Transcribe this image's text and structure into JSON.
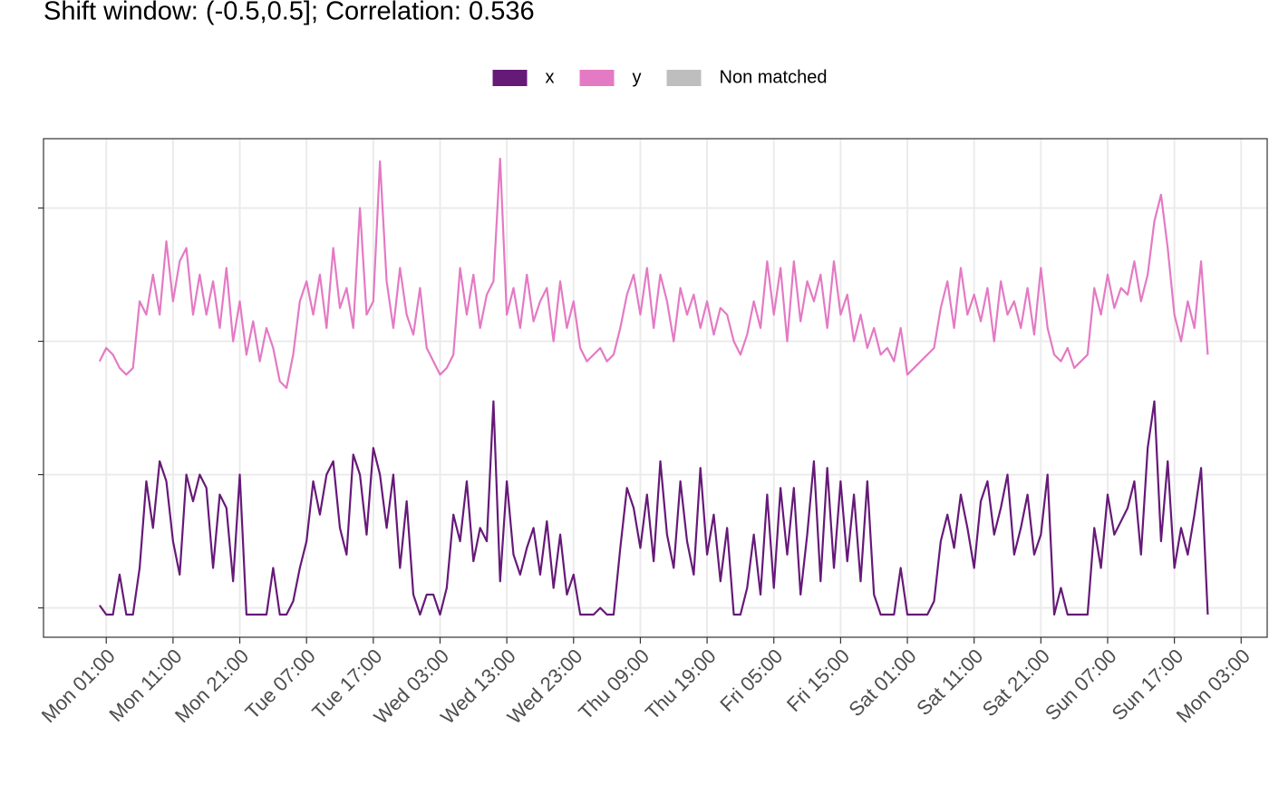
{
  "chart_data": {
    "type": "line",
    "title": "Shift window: (-0.5,0.5]; Correlation: 0.536",
    "legend": {
      "position": "top",
      "extra": [
        {
          "name": "Non matched",
          "color": "#bebebe"
        }
      ]
    },
    "grid": true,
    "xlim": [
      -8.4,
      174.9
    ],
    "ylim": [
      -0.22,
      3.52
    ],
    "yticks": [
      0,
      1,
      2,
      3
    ],
    "xticks": [
      {
        "value": 1,
        "label": "Mon 01:00"
      },
      {
        "value": 11,
        "label": "Mon 11:00"
      },
      {
        "value": 21,
        "label": "Mon 21:00"
      },
      {
        "value": 31,
        "label": "Tue 07:00"
      },
      {
        "value": 41,
        "label": "Tue 17:00"
      },
      {
        "value": 51,
        "label": "Wed 03:00"
      },
      {
        "value": 61,
        "label": "Wed 13:00"
      },
      {
        "value": 71,
        "label": "Wed 23:00"
      },
      {
        "value": 81,
        "label": "Thu 09:00"
      },
      {
        "value": 91,
        "label": "Thu 19:00"
      },
      {
        "value": 101,
        "label": "Fri 05:00"
      },
      {
        "value": 111,
        "label": "Fri 15:00"
      },
      {
        "value": 121,
        "label": "Sat 01:00"
      },
      {
        "value": 131,
        "label": "Sat 11:00"
      },
      {
        "value": 141,
        "label": "Sat 21:00"
      },
      {
        "value": 151,
        "label": "Sun 07:00"
      },
      {
        "value": 161,
        "label": "Sun 17:00"
      },
      {
        "value": 171,
        "label": "Mon 03:00"
      }
    ],
    "x": [
      0,
      1,
      2,
      3,
      4,
      5,
      6,
      7,
      8,
      9,
      10,
      11,
      12,
      13,
      14,
      15,
      16,
      17,
      18,
      19,
      20,
      21,
      22,
      23,
      24,
      25,
      26,
      27,
      28,
      29,
      30,
      31,
      32,
      33,
      34,
      35,
      36,
      37,
      38,
      39,
      40,
      41,
      42,
      43,
      44,
      45,
      46,
      47,
      48,
      49,
      50,
      51,
      52,
      53,
      54,
      55,
      56,
      57,
      58,
      59,
      60,
      61,
      62,
      63,
      64,
      65,
      66,
      67,
      68,
      69,
      70,
      71,
      72,
      73,
      74,
      75,
      76,
      77,
      78,
      79,
      80,
      81,
      82,
      83,
      84,
      85,
      86,
      87,
      88,
      89,
      90,
      91,
      92,
      93,
      94,
      95,
      96,
      97,
      98,
      99,
      100,
      101,
      102,
      103,
      104,
      105,
      106,
      107,
      108,
      109,
      110,
      111,
      112,
      113,
      114,
      115,
      116,
      117,
      118,
      119,
      120,
      121,
      122,
      123,
      124,
      125,
      126,
      127,
      128,
      129,
      130,
      131,
      132,
      133,
      134,
      135,
      136,
      137,
      138,
      139,
      140,
      141,
      142,
      143,
      144,
      145,
      146,
      147,
      148,
      149,
      150,
      151,
      152,
      153,
      154,
      155,
      156,
      157,
      158,
      159,
      160,
      161,
      162,
      163,
      164,
      165,
      166
    ],
    "series": [
      {
        "name": "x",
        "color": "#661a78",
        "values": [
          0.02,
          -0.05,
          -0.05,
          0.25,
          -0.05,
          -0.05,
          0.3,
          0.95,
          0.6,
          1.1,
          0.95,
          0.5,
          0.25,
          1.0,
          0.8,
          1.0,
          0.9,
          0.3,
          0.85,
          0.75,
          0.2,
          1.0,
          -0.05,
          -0.05,
          -0.05,
          -0.05,
          0.3,
          -0.05,
          -0.05,
          0.05,
          0.3,
          0.5,
          0.95,
          0.7,
          1.0,
          1.1,
          0.6,
          0.4,
          1.15,
          1.0,
          0.55,
          1.2,
          1.0,
          0.6,
          1.0,
          0.3,
          0.8,
          0.1,
          -0.05,
          0.1,
          0.1,
          -0.05,
          0.15,
          0.7,
          0.5,
          0.95,
          0.35,
          0.6,
          0.5,
          1.55,
          0.2,
          0.95,
          0.4,
          0.25,
          0.45,
          0.6,
          0.25,
          0.65,
          0.15,
          0.55,
          0.1,
          0.25,
          -0.05,
          -0.05,
          -0.05,
          0.0,
          -0.05,
          -0.05,
          0.45,
          0.9,
          0.75,
          0.45,
          0.85,
          0.35,
          1.1,
          0.55,
          0.3,
          0.95,
          0.5,
          0.25,
          1.05,
          0.4,
          0.7,
          0.2,
          0.6,
          -0.05,
          -0.05,
          0.15,
          0.55,
          0.1,
          0.85,
          0.15,
          0.9,
          0.4,
          0.9,
          0.1,
          0.55,
          1.1,
          0.2,
          1.05,
          0.3,
          0.95,
          0.35,
          0.85,
          0.2,
          0.95,
          0.1,
          -0.05,
          -0.05,
          -0.05,
          0.3,
          -0.05,
          -0.05,
          -0.05,
          -0.05,
          0.05,
          0.5,
          0.7,
          0.45,
          0.85,
          0.6,
          0.3,
          0.8,
          0.95,
          0.55,
          0.75,
          1.0,
          0.4,
          0.6,
          0.85,
          0.4,
          0.55,
          1.0,
          -0.05,
          0.15,
          -0.05,
          -0.05,
          -0.05,
          -0.05,
          0.6,
          0.3,
          0.85,
          0.55,
          0.65,
          0.75,
          0.95,
          0.4,
          1.2,
          1.55,
          0.5,
          1.1,
          0.3,
          0.6,
          0.4,
          0.7,
          1.05,
          -0.05
        ]
      },
      {
        "name": "y",
        "color": "#e47ac4",
        "values": [
          1.85,
          1.95,
          1.9,
          1.8,
          1.75,
          1.8,
          2.3,
          2.2,
          2.5,
          2.2,
          2.75,
          2.3,
          2.6,
          2.7,
          2.2,
          2.5,
          2.2,
          2.45,
          2.1,
          2.55,
          2.0,
          2.3,
          1.9,
          2.15,
          1.85,
          2.1,
          1.95,
          1.7,
          1.65,
          1.9,
          2.3,
          2.45,
          2.2,
          2.5,
          2.1,
          2.7,
          2.25,
          2.4,
          2.1,
          3.0,
          2.2,
          2.3,
          3.35,
          2.45,
          2.1,
          2.55,
          2.2,
          2.05,
          2.4,
          1.95,
          1.85,
          1.75,
          1.8,
          1.9,
          2.55,
          2.2,
          2.5,
          2.1,
          2.35,
          2.45,
          3.37,
          2.2,
          2.4,
          2.1,
          2.5,
          2.15,
          2.3,
          2.4,
          2.0,
          2.45,
          2.1,
          2.3,
          1.95,
          1.85,
          1.9,
          1.95,
          1.85,
          1.9,
          2.1,
          2.35,
          2.5,
          2.2,
          2.55,
          2.1,
          2.5,
          2.3,
          2.0,
          2.4,
          2.2,
          2.35,
          2.1,
          2.3,
          2.05,
          2.25,
          2.2,
          2.0,
          1.9,
          2.05,
          2.3,
          2.1,
          2.6,
          2.2,
          2.55,
          2.0,
          2.6,
          2.15,
          2.45,
          2.3,
          2.5,
          2.1,
          2.6,
          2.2,
          2.35,
          2.0,
          2.2,
          1.95,
          2.1,
          1.9,
          1.95,
          1.85,
          2.1,
          1.75,
          1.8,
          1.85,
          1.9,
          1.95,
          2.25,
          2.45,
          2.1,
          2.55,
          2.2,
          2.35,
          2.15,
          2.4,
          2.0,
          2.45,
          2.2,
          2.3,
          2.1,
          2.4,
          2.05,
          2.55,
          2.1,
          1.9,
          1.85,
          1.95,
          1.8,
          1.85,
          1.9,
          2.4,
          2.2,
          2.5,
          2.25,
          2.4,
          2.35,
          2.6,
          2.3,
          2.5,
          2.9,
          3.1,
          2.7,
          2.2,
          2.0,
          2.3,
          2.1,
          2.6,
          1.9
        ]
      }
    ]
  }
}
